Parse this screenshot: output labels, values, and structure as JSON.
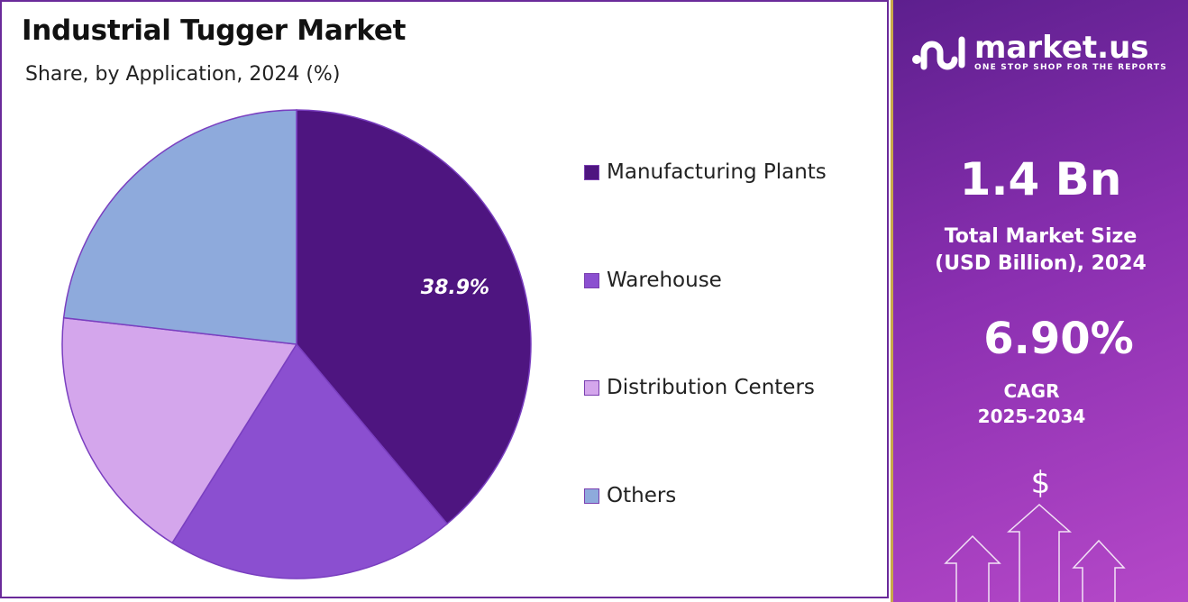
{
  "chart_data": {
    "type": "pie",
    "title": "Industrial Tugger Market",
    "subtitle": "Share, by  Application, 2024 (%)",
    "categories": [
      "Manufacturing Plants",
      "Warehouse",
      "Distribution Centers",
      "Others"
    ],
    "values": [
      38.9,
      20.0,
      17.9,
      23.2
    ],
    "data_labels": [
      "38.9%",
      "",
      "",
      ""
    ],
    "colors": [
      "#4e1580",
      "#8b4fd0",
      "#d4a6ec",
      "#8eaadc"
    ],
    "legend_position": "right"
  },
  "panel": {
    "brand": "market.us",
    "tagline": "ONE STOP SHOP FOR THE REPORTS",
    "market_size": "1.4 Bn",
    "market_size_label_1": "Total Market Size",
    "market_size_label_2": "(USD Billion), 2024",
    "cagr": "6.90%",
    "cagr_label_1": "CAGR",
    "cagr_label_2": "2025-2034",
    "dollar": "$"
  }
}
